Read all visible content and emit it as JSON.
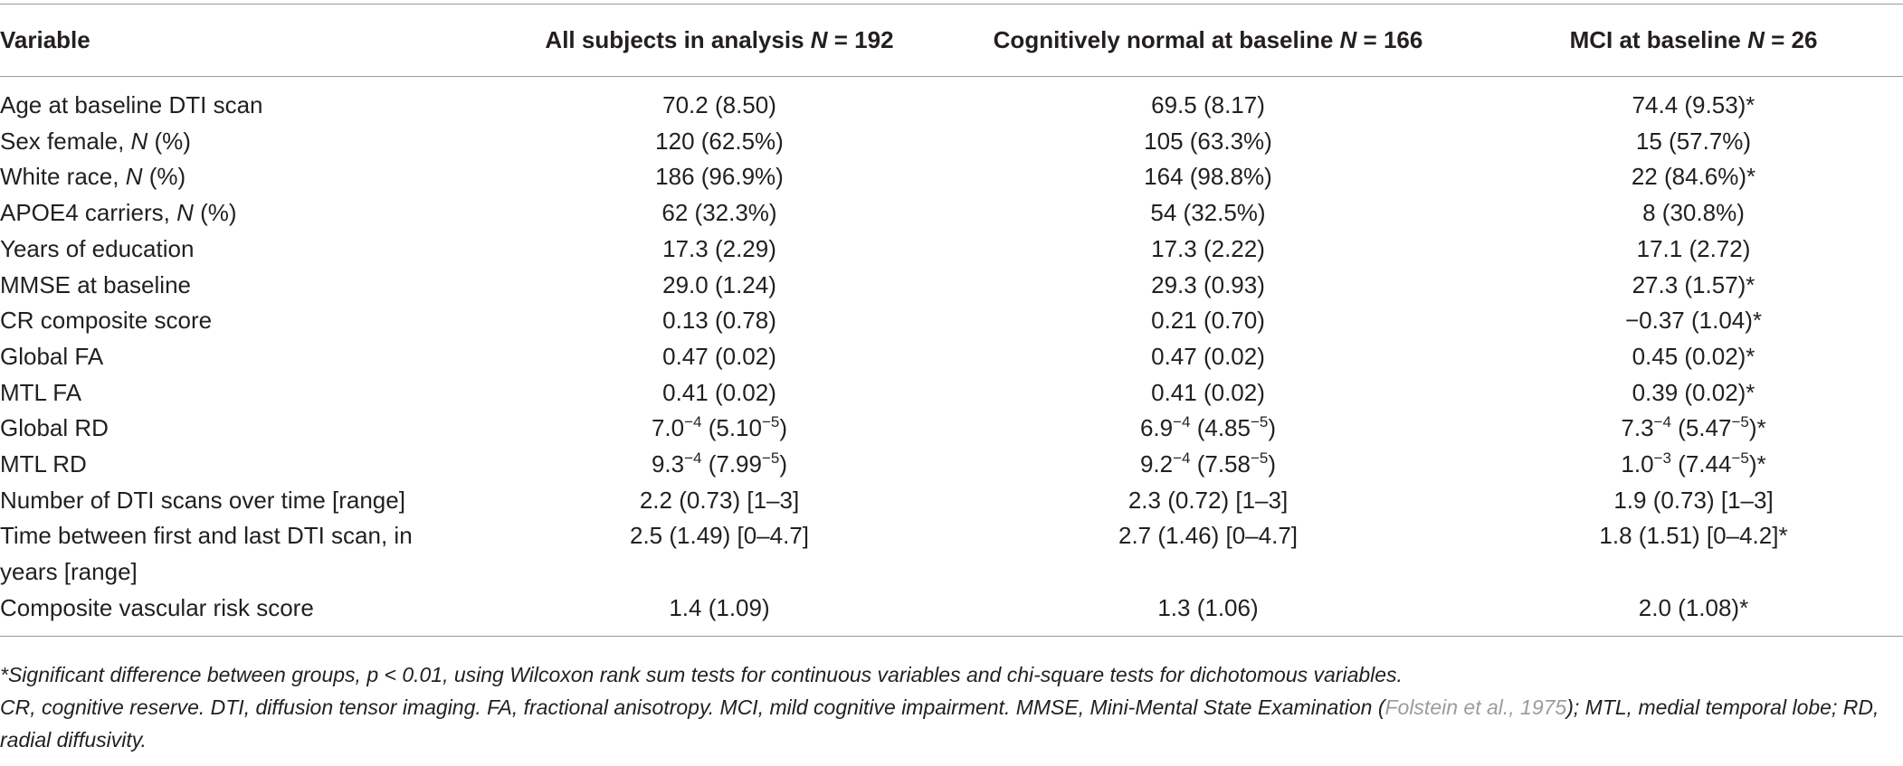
{
  "columns": [
    {
      "label": "Variable",
      "n": ""
    },
    {
      "label": "All subjects in analysis ",
      "n": "N",
      "n_val": " = 192"
    },
    {
      "label": "Cognitively normal at baseline ",
      "n": "N",
      "n_val": " = 166"
    },
    {
      "label": "MCI at baseline ",
      "n": "N",
      "n_val": " = 26"
    }
  ],
  "rows": [
    {
      "variable": "Age at baseline DTI scan",
      "all": "70.2 (8.50)",
      "cn": "69.5 (8.17)",
      "mci": "74.4 (9.53)*"
    },
    {
      "variable_pre": "Sex female, ",
      "variable_it": "N",
      "variable_post": " (%)",
      "all": "120 (62.5%)",
      "cn": "105 (63.3%)",
      "mci": "15 (57.7%)"
    },
    {
      "variable_pre": "White race, ",
      "variable_it": "N",
      "variable_post": " (%)",
      "all": "186 (96.9%)",
      "cn": "164 (98.8%)",
      "mci": "22 (84.6%)*"
    },
    {
      "variable_pre": "APOE4 carriers, ",
      "variable_it": "N",
      "variable_post": " (%)",
      "all": "62 (32.3%)",
      "cn": "54 (32.5%)",
      "mci": "8 (30.8%)"
    },
    {
      "variable": "Years of education",
      "all": "17.3 (2.29)",
      "cn": "17.3 (2.22)",
      "mci": "17.1 (2.72)"
    },
    {
      "variable": "MMSE at baseline",
      "all": "29.0 (1.24)",
      "cn": "29.3 (0.93)",
      "mci": "27.3 (1.57)*"
    },
    {
      "variable": "CR composite score",
      "all": "0.13 (0.78)",
      "cn": "0.21 (0.70)",
      "mci": "−0.37 (1.04)*"
    },
    {
      "variable": "Global FA",
      "all": "0.47 (0.02)",
      "cn": "0.47 (0.02)",
      "mci": "0.45 (0.02)*"
    },
    {
      "variable": "MTL FA",
      "all": "0.41 (0.02)",
      "cn": "0.41 (0.02)",
      "mci": "0.39 (0.02)*"
    },
    {
      "variable": "Global RD",
      "all_a": "7.0",
      "all_e1": "−4",
      "all_b": " (5.10",
      "all_e2": "−5",
      "all_c": ")",
      "cn_a": "6.9",
      "cn_e1": "−4",
      "cn_b": " (4.85",
      "cn_e2": "−5",
      "cn_c": ")",
      "mci_a": "7.3",
      "mci_e1": "−4",
      "mci_b": " (5.47",
      "mci_e2": "−5",
      "mci_c": ")*"
    },
    {
      "variable": "MTL RD",
      "all_a": "9.3",
      "all_e1": "−4",
      "all_b": " (7.99",
      "all_e2": "−5",
      "all_c": ")",
      "cn_a": "9.2",
      "cn_e1": "−4",
      "cn_b": " (7.58",
      "cn_e2": "−5",
      "cn_c": ")",
      "mci_a": "1.0",
      "mci_e1": "−3",
      "mci_b": " (7.44",
      "mci_e2": "−5",
      "mci_c": ")*"
    },
    {
      "variable": "Number of DTI scans over time [range]",
      "all": "2.2 (0.73) [1–3]",
      "cn": "2.3 (0.72) [1–3]",
      "mci": "1.9 (0.73) [1–3]"
    },
    {
      "variable_l1": "Time between first and last DTI scan, in",
      "variable_l2": "years [range]",
      "all": "2.5 (1.49) [0–4.7]",
      "cn": "2.7 (1.46) [0–4.7]",
      "mci": "1.8 (1.51) [0–4.2]*"
    },
    {
      "variable": "Composite vascular risk score",
      "all": "1.4 (1.09)",
      "cn": "1.3 (1.06)",
      "mci": "2.0 (1.08)*"
    }
  ],
  "footnotes": {
    "sig_a": "*Significant difference between groups, ",
    "sig_p": "p",
    "sig_b": " < 0.01, using Wilcoxon rank sum tests for continuous variables and chi-square tests for dichotomous variables.",
    "abbr_a": "CR, cognitive reserve. DTI, diffusion tensor imaging. FA, fractional anisotropy. MCI, mild cognitive impairment. MMSE, Mini-Mental State Examination (",
    "abbr_ref": "Folstein et al., 1975",
    "abbr_b": "); MTL, medial temporal lobe; RD, radial diffusivity."
  }
}
